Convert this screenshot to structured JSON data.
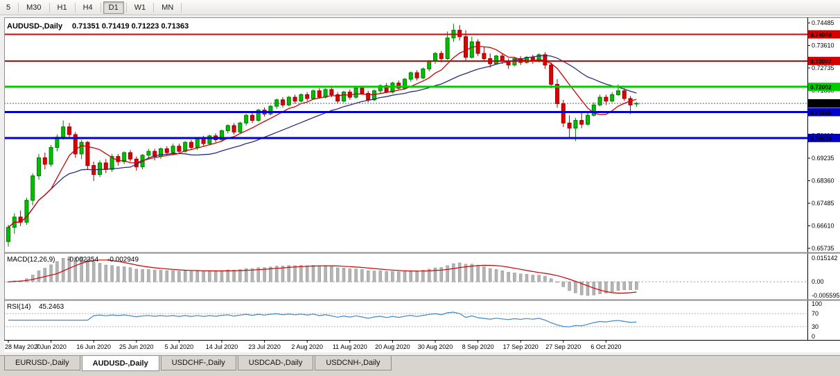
{
  "toolbar": {
    "timeframes": [
      {
        "label": "5",
        "active": false
      },
      {
        "label": "M30",
        "active": false
      },
      {
        "label": "H1",
        "active": false
      },
      {
        "label": "H4",
        "active": false
      },
      {
        "label": "D1",
        "active": true
      },
      {
        "label": "W1",
        "active": false
      },
      {
        "label": "MN",
        "active": false
      }
    ]
  },
  "chart": {
    "symbol_title": "AUDUSD-,Daily",
    "ohlc_text": "0.71351 0.71419 0.71223 0.71363",
    "price_axis_ticks": [
      "0.74485",
      "0.73610",
      "0.72735",
      "0.71860",
      "0.70985",
      "0.70110",
      "0.69235",
      "0.68360",
      "0.67485",
      "0.66610",
      "0.65735"
    ],
    "hlines": [
      {
        "price": 0.7404,
        "label": "0.74040",
        "color": "#d40000",
        "width": 2
      },
      {
        "price": 0.73007,
        "label": "0.73007",
        "color": "#d40000",
        "width": 2
      },
      {
        "price": 0.72002,
        "label": "0.72002",
        "color": "#00cc00",
        "width": 3
      },
      {
        "price": 0.71025,
        "label": "0.71025",
        "color": "#0000cc",
        "width": 3
      },
      {
        "price": 0.7002,
        "label": "0.70020",
        "color": "#0000cc",
        "width": 3
      }
    ],
    "current_price": {
      "value": 0.71363,
      "label": "0.71363",
      "bg": "#000000"
    },
    "colors": {
      "up": "#00bf00",
      "up_edge": "#007a00",
      "down": "#e00000",
      "down_edge": "#990000",
      "ma_fast": "#cc0000",
      "ma_slow": "#2b2b7f"
    }
  },
  "indicators": {
    "macd": {
      "name_text": "MACD(12,26,9)",
      "value_main": "-0.002354",
      "value_signal": "-0.002949",
      "axis_top": "0.015142",
      "axis_zero": "0.00",
      "axis_bottom": "-0.005595",
      "fast": 12,
      "slow": 26,
      "signal": 9,
      "bar_color": "#b4b4b4",
      "bar_edge": "#8f8f8f",
      "line_color": "#cc0000"
    },
    "rsi": {
      "name_text": "RSI(14)",
      "value_text": "45.2463",
      "period": 14,
      "axis_labels": [
        {
          "text": "100",
          "level": 100
        },
        {
          "text": "70",
          "level": 70
        },
        {
          "text": "30",
          "level": 30
        },
        {
          "text": "0",
          "level": 0
        }
      ],
      "levels": [
        70,
        30
      ],
      "line_color": "#3b87c8"
    }
  },
  "chart_data": {
    "type": "candlestick",
    "symbol": "AUDUSD",
    "timeframe": "Daily",
    "ylim": [
      0.65735,
      0.74485
    ],
    "x_labels": [
      "28 May 2020",
      "7 Jun 2020",
      "16 Jun 2020",
      "25 Jun 2020",
      "5 Jul 2020",
      "14 Jul 2020",
      "23 Jul 2020",
      "2 Aug 2020",
      "11 Aug 2020",
      "20 Aug 2020",
      "30 Aug 2020",
      "8 Sep 2020",
      "17 Sep 2020",
      "27 Sep 2020",
      "6 Oct 2020"
    ],
    "x_label_indices": [
      0,
      7,
      14,
      21,
      28,
      35,
      42,
      49,
      56,
      63,
      70,
      77,
      84,
      91,
      98
    ],
    "overlays": [
      {
        "name": "sma-fast",
        "period": 8
      },
      {
        "name": "sma-slow",
        "period": 21
      }
    ],
    "ohlc": [
      [
        0.66,
        0.6665,
        0.658,
        0.6655
      ],
      [
        0.6655,
        0.671,
        0.663,
        0.6695
      ],
      [
        0.6695,
        0.672,
        0.666,
        0.6675
      ],
      [
        0.6675,
        0.677,
        0.6665,
        0.676
      ],
      [
        0.676,
        0.6865,
        0.674,
        0.6855
      ],
      [
        0.6855,
        0.694,
        0.684,
        0.6925
      ],
      [
        0.6925,
        0.6945,
        0.688,
        0.69
      ],
      [
        0.69,
        0.6975,
        0.689,
        0.6965
      ],
      [
        0.6965,
        0.7015,
        0.695,
        0.7005
      ],
      [
        0.7005,
        0.707,
        0.6995,
        0.7045
      ],
      [
        0.7045,
        0.706,
        0.7,
        0.7015
      ],
      [
        0.7015,
        0.7025,
        0.6925,
        0.694
      ],
      [
        0.694,
        0.6995,
        0.692,
        0.6985
      ],
      [
        0.6985,
        0.699,
        0.688,
        0.6895
      ],
      [
        0.6895,
        0.691,
        0.6835,
        0.686
      ],
      [
        0.686,
        0.6915,
        0.685,
        0.6905
      ],
      [
        0.6905,
        0.692,
        0.6865,
        0.688
      ],
      [
        0.688,
        0.694,
        0.687,
        0.693
      ],
      [
        0.693,
        0.694,
        0.6895,
        0.691
      ],
      [
        0.691,
        0.695,
        0.69,
        0.6945
      ],
      [
        0.6945,
        0.6955,
        0.691,
        0.692
      ],
      [
        0.692,
        0.693,
        0.6875,
        0.689
      ],
      [
        0.689,
        0.694,
        0.688,
        0.6935
      ],
      [
        0.6935,
        0.696,
        0.692,
        0.695
      ],
      [
        0.695,
        0.696,
        0.6915,
        0.693
      ],
      [
        0.693,
        0.6965,
        0.692,
        0.696
      ],
      [
        0.696,
        0.697,
        0.6935,
        0.6945
      ],
      [
        0.6945,
        0.698,
        0.6935,
        0.697
      ],
      [
        0.697,
        0.698,
        0.694,
        0.695
      ],
      [
        0.695,
        0.699,
        0.6945,
        0.6985
      ],
      [
        0.6985,
        0.6995,
        0.6955,
        0.6965
      ],
      [
        0.6965,
        0.7005,
        0.6955,
        0.7
      ],
      [
        0.7,
        0.701,
        0.697,
        0.698
      ],
      [
        0.698,
        0.7015,
        0.6975,
        0.701
      ],
      [
        0.701,
        0.702,
        0.6985,
        0.6995
      ],
      [
        0.6995,
        0.7035,
        0.699,
        0.703
      ],
      [
        0.703,
        0.7055,
        0.702,
        0.705
      ],
      [
        0.705,
        0.706,
        0.7015,
        0.7025
      ],
      [
        0.7025,
        0.7065,
        0.702,
        0.706
      ],
      [
        0.706,
        0.7095,
        0.705,
        0.709
      ],
      [
        0.709,
        0.71,
        0.706,
        0.707
      ],
      [
        0.707,
        0.7115,
        0.7065,
        0.711
      ],
      [
        0.711,
        0.712,
        0.7085,
        0.7095
      ],
      [
        0.7095,
        0.713,
        0.709,
        0.7125
      ],
      [
        0.7125,
        0.7155,
        0.7115,
        0.715
      ],
      [
        0.715,
        0.716,
        0.712,
        0.713
      ],
      [
        0.713,
        0.7165,
        0.7125,
        0.716
      ],
      [
        0.716,
        0.717,
        0.7135,
        0.7145
      ],
      [
        0.7145,
        0.7175,
        0.714,
        0.717
      ],
      [
        0.717,
        0.718,
        0.7145,
        0.7155
      ],
      [
        0.7155,
        0.719,
        0.715,
        0.7185
      ],
      [
        0.7185,
        0.7195,
        0.7155,
        0.716
      ],
      [
        0.716,
        0.7195,
        0.7155,
        0.719
      ],
      [
        0.719,
        0.72,
        0.716,
        0.717
      ],
      [
        0.717,
        0.718,
        0.7135,
        0.7145
      ],
      [
        0.7145,
        0.7185,
        0.714,
        0.718
      ],
      [
        0.718,
        0.719,
        0.715,
        0.716
      ],
      [
        0.716,
        0.72,
        0.7155,
        0.7195
      ],
      [
        0.7195,
        0.7205,
        0.717,
        0.7175
      ],
      [
        0.7175,
        0.7185,
        0.714,
        0.715
      ],
      [
        0.715,
        0.719,
        0.7145,
        0.7185
      ],
      [
        0.7185,
        0.721,
        0.7175,
        0.7205
      ],
      [
        0.7205,
        0.7215,
        0.7175,
        0.718
      ],
      [
        0.718,
        0.722,
        0.7175,
        0.7215
      ],
      [
        0.7215,
        0.7225,
        0.719,
        0.7195
      ],
      [
        0.7195,
        0.7235,
        0.719,
        0.723
      ],
      [
        0.723,
        0.726,
        0.722,
        0.7255
      ],
      [
        0.7255,
        0.7265,
        0.7225,
        0.7235
      ],
      [
        0.7235,
        0.7275,
        0.723,
        0.727
      ],
      [
        0.727,
        0.7305,
        0.726,
        0.73
      ],
      [
        0.73,
        0.7335,
        0.729,
        0.733
      ],
      [
        0.733,
        0.734,
        0.7295,
        0.731
      ],
      [
        0.731,
        0.7415,
        0.7305,
        0.739
      ],
      [
        0.739,
        0.7445,
        0.7375,
        0.742
      ],
      [
        0.742,
        0.744,
        0.738,
        0.7395
      ],
      [
        0.7395,
        0.742,
        0.73,
        0.7315
      ],
      [
        0.7315,
        0.7395,
        0.731,
        0.7375
      ],
      [
        0.7375,
        0.7385,
        0.732,
        0.733
      ],
      [
        0.733,
        0.7355,
        0.73,
        0.731
      ],
      [
        0.731,
        0.733,
        0.7275,
        0.729
      ],
      [
        0.729,
        0.7325,
        0.7285,
        0.732
      ],
      [
        0.732,
        0.733,
        0.729,
        0.73
      ],
      [
        0.73,
        0.731,
        0.727,
        0.7285
      ],
      [
        0.7285,
        0.7315,
        0.728,
        0.731
      ],
      [
        0.731,
        0.732,
        0.7285,
        0.7295
      ],
      [
        0.7295,
        0.732,
        0.729,
        0.7315
      ],
      [
        0.7315,
        0.7325,
        0.729,
        0.73
      ],
      [
        0.73,
        0.733,
        0.7295,
        0.7325
      ],
      [
        0.7325,
        0.7335,
        0.727,
        0.7285
      ],
      [
        0.7285,
        0.7295,
        0.7195,
        0.721
      ],
      [
        0.721,
        0.723,
        0.712,
        0.7135
      ],
      [
        0.7135,
        0.715,
        0.7045,
        0.706
      ],
      [
        0.706,
        0.709,
        0.7,
        0.704
      ],
      [
        0.704,
        0.708,
        0.699,
        0.707
      ],
      [
        0.707,
        0.71,
        0.704,
        0.7055
      ],
      [
        0.7055,
        0.71,
        0.705,
        0.709
      ],
      [
        0.709,
        0.714,
        0.7085,
        0.713
      ],
      [
        0.713,
        0.717,
        0.7125,
        0.716
      ],
      [
        0.716,
        0.717,
        0.713,
        0.7145
      ],
      [
        0.7145,
        0.718,
        0.714,
        0.717
      ],
      [
        0.717,
        0.721,
        0.7165,
        0.7185
      ],
      [
        0.7185,
        0.7195,
        0.7145,
        0.7155
      ],
      [
        0.7155,
        0.7165,
        0.7095,
        0.713
      ],
      [
        0.71351,
        0.71419,
        0.71223,
        0.71363
      ]
    ]
  },
  "tabs": [
    {
      "label": "EURUSD-,Daily",
      "active": false
    },
    {
      "label": "AUDUSD-,Daily",
      "active": true
    },
    {
      "label": "USDCHF-,Daily",
      "active": false
    },
    {
      "label": "USDCAD-,Daily",
      "active": false
    },
    {
      "label": "USDCNH-,Daily",
      "active": false
    }
  ]
}
